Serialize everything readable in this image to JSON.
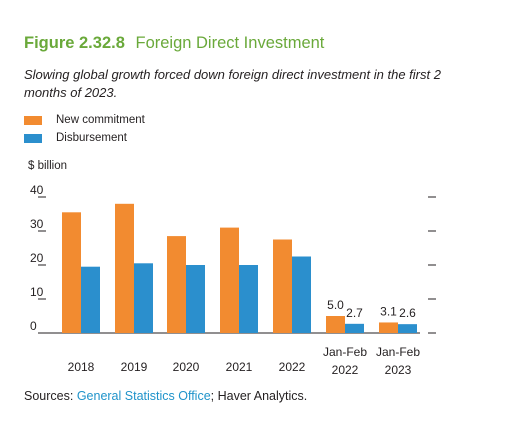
{
  "figure": {
    "number": "Figure 2.32.8",
    "name": "Foreign Direct Investment",
    "subtitle": "Slowing global growth forced down foreign direct investment in the first 2 months of 2023."
  },
  "source": {
    "prefix": "Sources: ",
    "link": "General Statistics Office",
    "suffix": "; Haver Analytics."
  },
  "colors": {
    "new_commitment": "#f28b30",
    "disbursement": "#2b8fcd",
    "title": "#6aa93a",
    "link": "#1f93ca"
  },
  "chart_data": {
    "type": "bar",
    "ylabel": "$ billion",
    "ylim": [
      0,
      40
    ],
    "yticks": [
      "0",
      "10",
      "20",
      "30",
      "40"
    ],
    "grid": false,
    "legend_position": "top-left",
    "categories": [
      {
        "line1": "2018",
        "line2": ""
      },
      {
        "line1": "2019",
        "line2": ""
      },
      {
        "line1": "2020",
        "line2": ""
      },
      {
        "line1": "2021",
        "line2": ""
      },
      {
        "line1": "2022",
        "line2": ""
      },
      {
        "line1": "Jan-Feb",
        "line2": "2022"
      },
      {
        "line1": "Jan-Feb",
        "line2": "2023"
      }
    ],
    "series": [
      {
        "name": "New commitment",
        "color": "#f28b30",
        "values": [
          35.5,
          38.0,
          28.5,
          31.0,
          27.5,
          5.0,
          3.1
        ],
        "labels": [
          "",
          "",
          "",
          "",
          "",
          "5.0",
          "3.1"
        ]
      },
      {
        "name": "Disbursement",
        "color": "#2b8fcd",
        "values": [
          19.5,
          20.5,
          20.0,
          20.0,
          22.5,
          2.7,
          2.6
        ],
        "labels": [
          "",
          "",
          "",
          "",
          "",
          "2.7",
          "2.6"
        ]
      }
    ]
  }
}
